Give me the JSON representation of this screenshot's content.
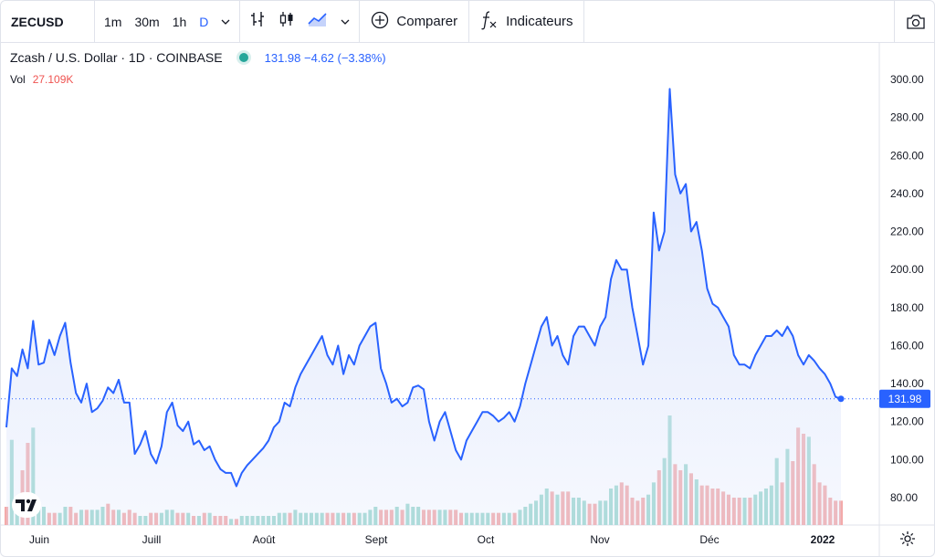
{
  "toolbar": {
    "symbol": "ZECUSD",
    "intervals": [
      "1m",
      "30m",
      "1h",
      "D"
    ],
    "active_interval": "D",
    "compare_label": "Comparer",
    "indicators_label": "Indicateurs"
  },
  "legend": {
    "title": "Zcash / U.S. Dollar · 1D · COINBASE",
    "price": "131.98 −4.62 (−3.38%)",
    "vol_label": "Vol",
    "vol_value": "27.109K"
  },
  "icons": {
    "interval_dropdown": "chevron-down-icon",
    "bar_type": "bars-icon",
    "candle_type": "candles-icon",
    "area_type": "area-chart-icon",
    "compare": "plus-circle-icon",
    "indicators": "fx-icon",
    "snapshot": "camera-icon",
    "logo": "tradingview-logo",
    "settings": "gear-icon"
  },
  "colors": {
    "line": "#2962ff",
    "area": "#dbe4fb",
    "volume_up": "#9ed8cf",
    "volume_down": "#f3aaaa",
    "status_dot": "#26a69a",
    "last_price_badge": "#2962ff"
  },
  "chart_data": {
    "type": "area",
    "ylim": [
      65,
      308
    ],
    "y_ticks": [
      "300.00",
      "280.00",
      "260.00",
      "240.00",
      "220.00",
      "200.00",
      "180.00",
      "160.00",
      "140.00",
      "120.00",
      "100.00",
      "80.00"
    ],
    "x_labels": [
      "Juin",
      "Juill",
      "Août",
      "Sept",
      "Oct",
      "Nov",
      "Déc",
      "2022"
    ],
    "last_price": "131.98",
    "series": [
      {
        "values": [
          117,
          148,
          144,
          158,
          148,
          173,
          150,
          151,
          163,
          155,
          165,
          172,
          151,
          135,
          130,
          140,
          125,
          127,
          131,
          138,
          135,
          142,
          130,
          130,
          103,
          108,
          115,
          103,
          98,
          107,
          125,
          130,
          118,
          115,
          120,
          108,
          110,
          105,
          107,
          100,
          95,
          93,
          93,
          86,
          93,
          97,
          100,
          103,
          106,
          110,
          117,
          120,
          130,
          128,
          138,
          145,
          150,
          155,
          160,
          165,
          155,
          150,
          160,
          145,
          155,
          150,
          160,
          165,
          170,
          172,
          148,
          140,
          130,
          132,
          128,
          130,
          138,
          139,
          137,
          120,
          110,
          120,
          125,
          115,
          105,
          100,
          110,
          115,
          120,
          125,
          125,
          123,
          120,
          122,
          125,
          120,
          128,
          140,
          150,
          160,
          170,
          175,
          160,
          165,
          155,
          150,
          165,
          170,
          170,
          165,
          160,
          170,
          175,
          195,
          205,
          200,
          200,
          180,
          165,
          150,
          160,
          230,
          210,
          220,
          295,
          250,
          240,
          245,
          220,
          225,
          210,
          190,
          182,
          180,
          175,
          170,
          155,
          150,
          150,
          148,
          155,
          160,
          165,
          165,
          168,
          165,
          170,
          165,
          155,
          150,
          155,
          152,
          148,
          145,
          140,
          133,
          132
        ],
        "volumes": [
          6,
          28,
          8,
          18,
          27,
          32,
          6,
          6,
          4,
          4,
          4,
          6,
          6,
          4,
          5,
          5,
          5,
          5,
          6,
          7,
          5,
          5,
          4,
          5,
          4,
          3,
          3,
          4,
          4,
          4,
          5,
          5,
          4,
          4,
          4,
          3,
          3,
          4,
          4,
          3,
          3,
          3,
          2,
          2,
          3,
          3,
          3,
          3,
          3,
          3,
          3,
          4,
          4,
          4,
          5,
          4,
          4,
          4,
          4,
          4,
          4,
          4,
          4,
          4,
          4,
          4,
          4,
          4,
          5,
          6,
          5,
          5,
          5,
          6,
          5,
          7,
          6,
          6,
          5,
          5,
          5,
          5,
          5,
          5,
          5,
          4,
          4,
          4,
          4,
          4,
          4,
          4,
          4,
          4,
          4,
          4,
          5,
          6,
          7,
          8,
          10,
          12,
          11,
          10,
          11,
          11,
          9,
          9,
          8,
          7,
          7,
          8,
          8,
          12,
          13,
          14,
          13,
          9,
          8,
          9,
          10,
          14,
          18,
          22,
          36,
          20,
          18,
          20,
          17,
          15,
          13,
          13,
          12,
          12,
          11,
          10,
          9,
          9,
          9,
          9,
          10,
          11,
          12,
          13,
          22,
          14,
          25,
          21,
          32,
          30,
          29,
          20,
          14,
          13,
          9,
          8,
          8
        ],
        "volume_dir": [
          0,
          1,
          1,
          0,
          0,
          1,
          1,
          1,
          0,
          0,
          1,
          1,
          0,
          0,
          1,
          0,
          1,
          1,
          1,
          0,
          0,
          1,
          0,
          0,
          0,
          1,
          1,
          0,
          0,
          1,
          1,
          1,
          0,
          0,
          1,
          0,
          1,
          0,
          1,
          0,
          0,
          0,
          1,
          0,
          1,
          1,
          1,
          1,
          1,
          1,
          1,
          1,
          1,
          0,
          1,
          1,
          1,
          1,
          1,
          1,
          0,
          0,
          1,
          0,
          1,
          0,
          1,
          1,
          1,
          1,
          0,
          0,
          0,
          1,
          0,
          1,
          1,
          1,
          0,
          0,
          0,
          1,
          1,
          0,
          0,
          0,
          1,
          1,
          1,
          1,
          1,
          0,
          0,
          1,
          1,
          0,
          1,
          1,
          1,
          1,
          1,
          1,
          0,
          1,
          0,
          0,
          1,
          1,
          1,
          0,
          0,
          1,
          1,
          1,
          1,
          0,
          0,
          0,
          0,
          0,
          1,
          1,
          0,
          1,
          1,
          0,
          0,
          1,
          0,
          1,
          0,
          0,
          0,
          0,
          0,
          0,
          0,
          0,
          1,
          0,
          1,
          1,
          1,
          1,
          1,
          0,
          1,
          0,
          0,
          0,
          1,
          0,
          0,
          0,
          0,
          0,
          0
        ]
      }
    ]
  }
}
